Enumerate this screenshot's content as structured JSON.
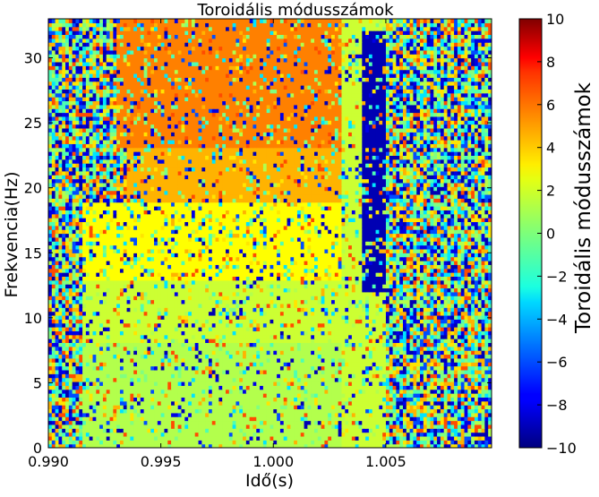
{
  "chart_data": {
    "type": "heatmap",
    "title": "Toroidális módusszámok",
    "xlabel": "Idő(s)",
    "ylabel": "Frekvencia(Hz)",
    "colorbar_label": "Toroidális módusszámok",
    "xlim": [
      0.99,
      1.0097
    ],
    "ylim": [
      0,
      33
    ],
    "clim": [
      -10,
      10
    ],
    "colormap": "jet",
    "x_ticks": [
      0.99,
      0.995,
      1.0,
      1.005
    ],
    "x_tick_labels": [
      "0.990",
      "0.995",
      "1.000",
      "1.005"
    ],
    "y_ticks": [
      0,
      5,
      10,
      15,
      20,
      25,
      30
    ],
    "y_tick_labels": [
      "0",
      "5",
      "10",
      "15",
      "20",
      "25",
      "30"
    ],
    "colorbar_ticks": [
      10,
      8,
      6,
      4,
      2,
      0,
      -2,
      -4,
      -6,
      -8,
      -10
    ],
    "colorbar_tick_labels": [
      "10",
      "8",
      "6",
      "4",
      "2",
      "0",
      "−2",
      "−4",
      "−6",
      "−8",
      "−10"
    ],
    "dominant_regions": [
      {
        "x": [
          0.9915,
          1.0035
        ],
        "y": [
          0,
          8
        ],
        "value": 1
      },
      {
        "x": [
          0.9915,
          1.0035
        ],
        "y": [
          8,
          13
        ],
        "value": 1.5
      },
      {
        "x": [
          0.9915,
          1.0035
        ],
        "y": [
          13,
          19
        ],
        "value": 2.5
      },
      {
        "x": [
          0.9935,
          1.003
        ],
        "y": [
          19,
          23
        ],
        "value": 4
      },
      {
        "x": [
          0.993,
          1.0035
        ],
        "y": [
          23,
          33
        ],
        "value": 5
      },
      {
        "x": [
          1.003,
          1.005
        ],
        "y": [
          0,
          33
        ],
        "value": 1.5
      },
      {
        "x": [
          1.004,
          1.005
        ],
        "y": [
          12,
          32
        ],
        "value": -9
      }
    ]
  }
}
